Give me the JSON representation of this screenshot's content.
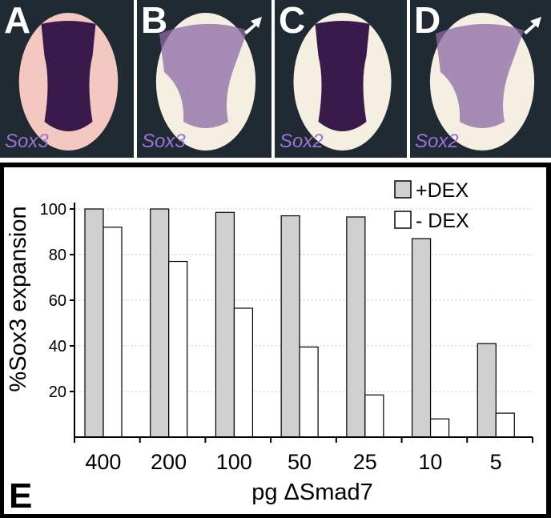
{
  "panels": [
    {
      "letter": "A",
      "gene": "Sox3",
      "arrow": false,
      "pattern": "narrow"
    },
    {
      "letter": "B",
      "gene": "Sox3",
      "arrow": true,
      "pattern": "expanded"
    },
    {
      "letter": "C",
      "gene": "Sox2",
      "arrow": false,
      "pattern": "narrow"
    },
    {
      "letter": "D",
      "gene": "Sox2",
      "arrow": true,
      "pattern": "expanded"
    }
  ],
  "colors": {
    "background_panel": "#1f2a33",
    "stain": "#3a1a4a",
    "embryo": "#f4efe0",
    "embryo_pink": "#f2c8c0",
    "gene_label": "#9b73d8",
    "bar_dex": "#d0d0d0",
    "bar_nodex": "#ffffff"
  },
  "chart_letter": "E",
  "chart_data": {
    "type": "bar",
    "categories": [
      "400",
      "200",
      "100",
      "50",
      "25",
      "10",
      "5"
    ],
    "series": [
      {
        "name": "+DEX",
        "values": [
          100,
          100,
          98.5,
          97,
          96.5,
          87,
          41
        ]
      },
      {
        "name": "- DEX",
        "values": [
          92,
          77,
          56.5,
          39.5,
          18.5,
          8,
          10.5
        ]
      }
    ],
    "xlabel": "pg ΔSmad7",
    "ylabel": "%Sox3 expansion",
    "ylim": [
      0,
      100
    ],
    "yticks": [
      20,
      40,
      60,
      80,
      100
    ],
    "grid": true,
    "legend": "top-right"
  }
}
